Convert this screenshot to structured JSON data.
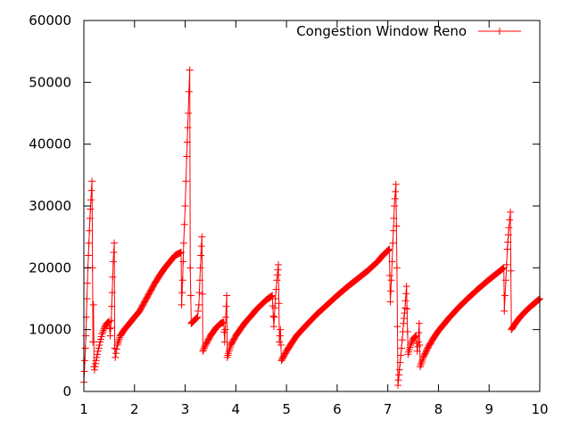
{
  "chart_data": {
    "type": "line",
    "title": "",
    "xlabel": "",
    "ylabel": "",
    "xlim": [
      1,
      10
    ],
    "ylim": [
      0,
      60000
    ],
    "x_ticks": [
      1,
      2,
      3,
      4,
      5,
      6,
      7,
      8,
      9,
      10
    ],
    "y_ticks": [
      0,
      10000,
      20000,
      30000,
      40000,
      50000,
      60000
    ],
    "x_tick_labels": [
      "1",
      "2",
      "3",
      "4",
      "5",
      "6",
      "7",
      "8",
      "9",
      "10"
    ],
    "y_tick_labels": [
      "0",
      "10000",
      "20000",
      "30000",
      "40000",
      "50000",
      "60000"
    ],
    "grid": false,
    "legend_position": "top-right",
    "series": [
      {
        "name": "Congestion Window Reno",
        "color": "#ff0000",
        "marker": "plus",
        "points": [
          [
            1.0,
            1500
          ],
          [
            1.02,
            5000
          ],
          [
            1.04,
            9000
          ],
          [
            1.06,
            15000
          ],
          [
            1.08,
            20000
          ],
          [
            1.1,
            24000
          ],
          [
            1.12,
            28000
          ],
          [
            1.14,
            31000
          ],
          [
            1.16,
            34000
          ],
          [
            1.17,
            20000
          ],
          [
            1.18,
            8000
          ],
          [
            1.19,
            14000
          ],
          [
            1.2,
            4000
          ],
          [
            1.21,
            3500
          ],
          [
            1.24,
            5000
          ],
          [
            1.28,
            6500
          ],
          [
            1.32,
            8000
          ],
          [
            1.36,
            9300
          ],
          [
            1.4,
            10200
          ],
          [
            1.45,
            11000
          ],
          [
            1.5,
            11300
          ],
          [
            1.52,
            9000
          ],
          [
            1.54,
            11500
          ],
          [
            1.56,
            16000
          ],
          [
            1.58,
            21000
          ],
          [
            1.6,
            24000
          ],
          [
            1.61,
            7000
          ],
          [
            1.62,
            5500
          ],
          [
            1.66,
            7500
          ],
          [
            1.72,
            9000
          ],
          [
            1.8,
            10000
          ],
          [
            1.9,
            11000
          ],
          [
            2.0,
            12000
          ],
          [
            2.1,
            13000
          ],
          [
            2.2,
            14500
          ],
          [
            2.3,
            16000
          ],
          [
            2.4,
            17500
          ],
          [
            2.5,
            18800
          ],
          [
            2.6,
            20000
          ],
          [
            2.7,
            21000
          ],
          [
            2.8,
            22000
          ],
          [
            2.92,
            22500
          ],
          [
            2.93,
            14000
          ],
          [
            2.95,
            18000
          ],
          [
            2.97,
            24000
          ],
          [
            3.0,
            30000
          ],
          [
            3.03,
            38000
          ],
          [
            3.06,
            45000
          ],
          [
            3.09,
            52000
          ],
          [
            3.1,
            20000
          ],
          [
            3.12,
            11000
          ],
          [
            3.18,
            11500
          ],
          [
            3.24,
            12000
          ],
          [
            3.27,
            14000
          ],
          [
            3.29,
            18000
          ],
          [
            3.31,
            22000
          ],
          [
            3.33,
            25000
          ],
          [
            3.35,
            6500
          ],
          [
            3.4,
            7500
          ],
          [
            3.5,
            9000
          ],
          [
            3.6,
            10200
          ],
          [
            3.7,
            11000
          ],
          [
            3.76,
            11200
          ],
          [
            3.78,
            8000
          ],
          [
            3.8,
            12000
          ],
          [
            3.82,
            15500
          ],
          [
            3.83,
            5500
          ],
          [
            3.9,
            7500
          ],
          [
            4.0,
            9000
          ],
          [
            4.1,
            10200
          ],
          [
            4.2,
            11300
          ],
          [
            4.3,
            12200
          ],
          [
            4.4,
            13200
          ],
          [
            4.5,
            14000
          ],
          [
            4.6,
            14800
          ],
          [
            4.72,
            15500
          ],
          [
            4.75,
            10500
          ],
          [
            4.78,
            15000
          ],
          [
            4.81,
            18000
          ],
          [
            4.84,
            20500
          ],
          [
            4.86,
            8000
          ],
          [
            4.88,
            10000
          ],
          [
            4.9,
            5000
          ],
          [
            5.0,
            6500
          ],
          [
            5.1,
            7800
          ],
          [
            5.2,
            9000
          ],
          [
            5.4,
            10800
          ],
          [
            5.6,
            12500
          ],
          [
            5.8,
            14000
          ],
          [
            6.0,
            15500
          ],
          [
            6.2,
            16900
          ],
          [
            6.4,
            18200
          ],
          [
            6.6,
            19500
          ],
          [
            6.8,
            21000
          ],
          [
            6.9,
            22000
          ],
          [
            7.03,
            23000
          ],
          [
            7.05,
            14500
          ],
          [
            7.07,
            18000
          ],
          [
            7.1,
            24000
          ],
          [
            7.13,
            30000
          ],
          [
            7.16,
            33500
          ],
          [
            7.18,
            20000
          ],
          [
            7.2,
            1000
          ],
          [
            7.23,
            3500
          ],
          [
            7.27,
            7000
          ],
          [
            7.31,
            11000
          ],
          [
            7.34,
            13500
          ],
          [
            7.37,
            17000
          ],
          [
            7.4,
            6000
          ],
          [
            7.45,
            7500
          ],
          [
            7.5,
            8500
          ],
          [
            7.56,
            9000
          ],
          [
            7.58,
            6500
          ],
          [
            7.6,
            8000
          ],
          [
            7.62,
            11000
          ],
          [
            7.64,
            4000
          ],
          [
            7.7,
            5500
          ],
          [
            7.8,
            7200
          ],
          [
            7.9,
            8600
          ],
          [
            8.0,
            9800
          ],
          [
            8.2,
            11800
          ],
          [
            8.4,
            13600
          ],
          [
            8.6,
            15200
          ],
          [
            8.8,
            16700
          ],
          [
            9.0,
            18100
          ],
          [
            9.2,
            19400
          ],
          [
            9.29,
            20000
          ],
          [
            9.3,
            13000
          ],
          [
            9.33,
            18000
          ],
          [
            9.36,
            23000
          ],
          [
            9.39,
            26500
          ],
          [
            9.42,
            29000
          ],
          [
            9.44,
            10000
          ],
          [
            9.5,
            10800
          ],
          [
            9.6,
            11900
          ],
          [
            9.7,
            12800
          ],
          [
            9.8,
            13600
          ],
          [
            9.9,
            14300
          ],
          [
            10.0,
            15000
          ]
        ]
      }
    ]
  }
}
